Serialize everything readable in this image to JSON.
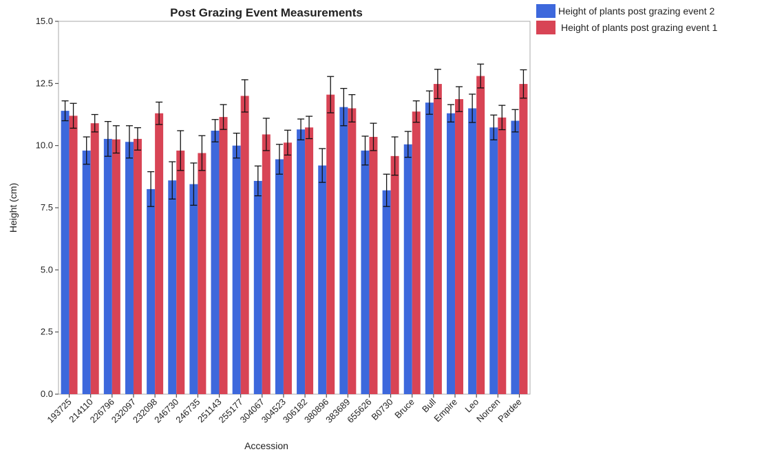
{
  "chart_data": {
    "type": "bar",
    "title": "Post Grazing Event Measurements",
    "x_label": "Accession",
    "y_label": "Height (cm)",
    "categories": [
      "193725",
      "214110",
      "226796",
      "232097",
      "232098",
      "246730",
      "246735",
      "251143",
      "255177",
      "304067",
      "304523",
      "306182",
      "380896",
      "383689",
      "655626",
      "B0730",
      "Bruce",
      "Bull",
      "Empire",
      "Leo",
      "Norcen",
      "Pardee"
    ],
    "series": [
      {
        "name": "Height of plants post grazing event 2",
        "color": "#3d68dc",
        "values": [
          11.4,
          9.8,
          10.27,
          10.15,
          8.25,
          8.6,
          8.45,
          10.6,
          10.0,
          8.58,
          9.45,
          10.65,
          9.2,
          11.55,
          9.8,
          8.2,
          10.05,
          11.73,
          11.3,
          11.5,
          10.73,
          11.0
        ],
        "errors": [
          0.4,
          0.55,
          0.7,
          0.65,
          0.7,
          0.75,
          0.85,
          0.45,
          0.5,
          0.6,
          0.6,
          0.42,
          0.68,
          0.75,
          0.58,
          0.65,
          0.52,
          0.47,
          0.35,
          0.57,
          0.5,
          0.45
        ]
      },
      {
        "name": "Height of plants post grazing event 1",
        "color": "#d84455",
        "values": [
          11.2,
          10.9,
          10.25,
          10.27,
          11.3,
          9.8,
          9.7,
          11.15,
          12.0,
          10.45,
          10.12,
          10.73,
          12.05,
          11.5,
          10.35,
          9.58,
          11.37,
          12.48,
          11.87,
          12.8,
          11.13,
          12.48
        ],
        "errors": [
          0.5,
          0.35,
          0.55,
          0.45,
          0.45,
          0.8,
          0.7,
          0.5,
          0.65,
          0.65,
          0.5,
          0.45,
          0.73,
          0.55,
          0.55,
          0.77,
          0.43,
          0.59,
          0.5,
          0.48,
          0.49,
          0.57
        ]
      }
    ],
    "ylim": [
      0,
      15
    ],
    "yticks": [
      {
        "value": 0,
        "label": "0.0"
      },
      {
        "value": 2.5,
        "label": "2.5"
      },
      {
        "value": 5,
        "label": "5.0"
      },
      {
        "value": 7.5,
        "label": "7.5"
      },
      {
        "value": 10,
        "label": "10.0"
      },
      {
        "value": 12.5,
        "label": "12.5"
      },
      {
        "value": 15,
        "label": "15.0"
      }
    ],
    "grid": false,
    "legend": "top-right"
  }
}
